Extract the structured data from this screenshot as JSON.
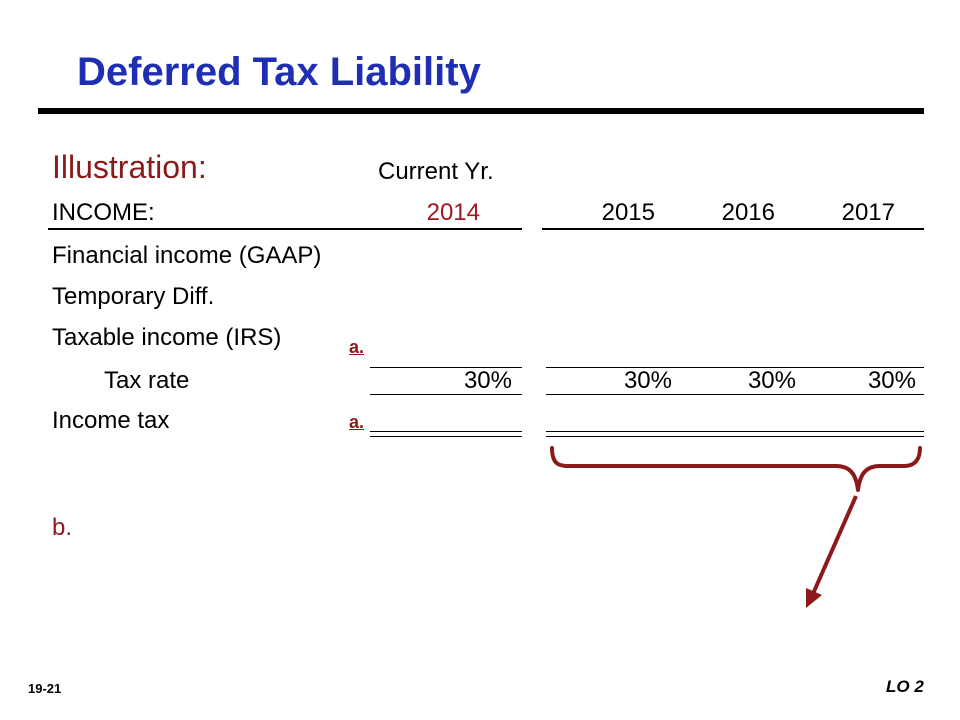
{
  "slide": {
    "title": "Deferred Tax Liability",
    "subtitle": "Illustration:",
    "current_year_label": "Current Yr.",
    "income_label": "INCOME:",
    "years": {
      "current": "2014",
      "future": [
        "2015",
        "2016",
        "2017"
      ]
    },
    "rows": {
      "financial_income": "Financial income (GAAP)",
      "temporary_diff": "Temporary Diff.",
      "taxable_income": "Taxable income (IRS)",
      "tax_rate": "Tax rate",
      "income_tax": "Income tax"
    },
    "tax_rates": {
      "current": "30%",
      "future": [
        "30%",
        "30%",
        "30%"
      ]
    },
    "markers": {
      "a_taxable": "a.",
      "a_income_tax": "a.",
      "b": "b."
    },
    "footer": {
      "page_number": "19-21",
      "learning_objective": "LO 2"
    },
    "colors": {
      "title_blue": "#1f2fb4",
      "dark_red": "#8b1a1a",
      "year_red": "#a3171d",
      "brace_red": "#8b1a1a"
    }
  }
}
